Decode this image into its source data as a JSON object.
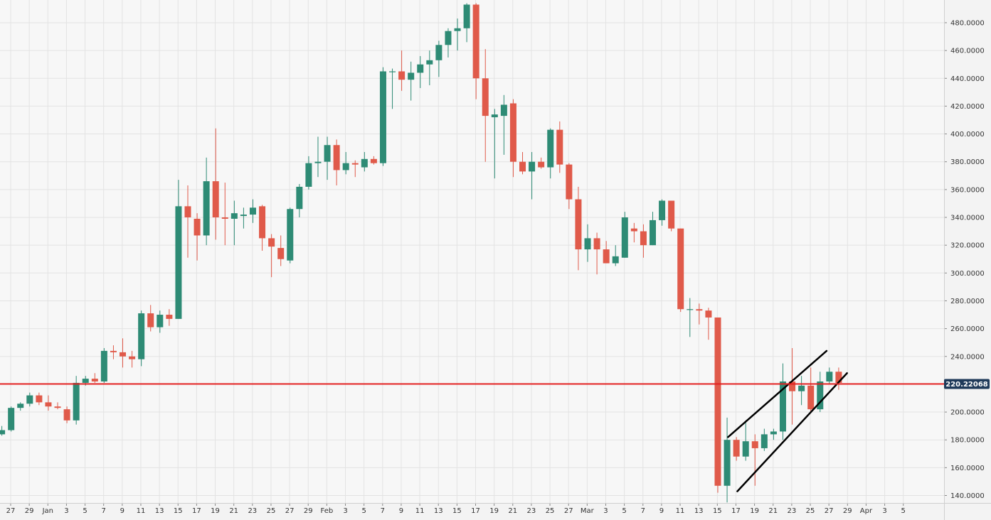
{
  "chart_data": {
    "type": "candlestick",
    "title": "",
    "xlabel": "",
    "ylabel": "",
    "ylim": [
      134,
      494
    ],
    "grid": true,
    "colors": {
      "up": "#2e8b75",
      "down": "#e05a4a",
      "price_line": "#e31f1f",
      "grid": "#e3e3e3",
      "trendline": "#000000",
      "price_tag_bg": "#1f3a5a"
    },
    "y_ticks": [
      "140.0000",
      "160.0000",
      "180.0000",
      "200.0000",
      "220.0000",
      "240.0000",
      "260.0000",
      "280.0000",
      "300.0000",
      "320.0000",
      "340.0000",
      "360.0000",
      "380.0000",
      "400.0000",
      "420.0000",
      "440.0000",
      "460.0000",
      "480.0000"
    ],
    "x_ticks": [
      "27",
      "29",
      "Jan",
      "3",
      "5",
      "7",
      "9",
      "11",
      "13",
      "15",
      "17",
      "19",
      "21",
      "23",
      "25",
      "27",
      "29",
      "Feb",
      "3",
      "5",
      "7",
      "9",
      "11",
      "13",
      "15",
      "17",
      "19",
      "21",
      "23",
      "25",
      "27",
      "Mar",
      "3",
      "5",
      "7",
      "9",
      "11",
      "13",
      "15",
      "17",
      "19",
      "21",
      "23",
      "25",
      "27",
      "29",
      "Apr",
      "3",
      "5"
    ],
    "current_price": 220.22068,
    "current_price_label": "220.22068",
    "candles": [
      {
        "o": 184,
        "h": 190,
        "l": 183,
        "c": 187
      },
      {
        "o": 187,
        "h": 204,
        "l": 186,
        "c": 203
      },
      {
        "o": 203,
        "h": 207,
        "l": 201,
        "c": 206
      },
      {
        "o": 206,
        "h": 214,
        "l": 204,
        "c": 212
      },
      {
        "o": 212,
        "h": 214,
        "l": 205,
        "c": 207
      },
      {
        "o": 207,
        "h": 212,
        "l": 201,
        "c": 204
      },
      {
        "o": 204,
        "h": 207,
        "l": 202,
        "c": 203
      },
      {
        "o": 202,
        "h": 204,
        "l": 192,
        "c": 194
      },
      {
        "o": 194,
        "h": 226,
        "l": 191,
        "c": 221
      },
      {
        "o": 221,
        "h": 226,
        "l": 219,
        "c": 224
      },
      {
        "o": 224,
        "h": 228,
        "l": 221,
        "c": 222
      },
      {
        "o": 222,
        "h": 246,
        "l": 221,
        "c": 244
      },
      {
        "o": 244,
        "h": 248,
        "l": 238,
        "c": 243
      },
      {
        "o": 243,
        "h": 253,
        "l": 232,
        "c": 240
      },
      {
        "o": 240,
        "h": 244,
        "l": 232,
        "c": 238
      },
      {
        "o": 238,
        "h": 273,
        "l": 233,
        "c": 271
      },
      {
        "o": 271,
        "h": 277,
        "l": 258,
        "c": 261
      },
      {
        "o": 261,
        "h": 273,
        "l": 257,
        "c": 270
      },
      {
        "o": 270,
        "h": 274,
        "l": 262,
        "c": 267
      },
      {
        "o": 267,
        "h": 367,
        "l": 267,
        "c": 348
      },
      {
        "o": 348,
        "h": 363,
        "l": 311,
        "c": 340
      },
      {
        "o": 339,
        "h": 343,
        "l": 309,
        "c": 327
      },
      {
        "o": 327,
        "h": 383,
        "l": 320,
        "c": 366
      },
      {
        "o": 366,
        "h": 404,
        "l": 324,
        "c": 340
      },
      {
        "o": 340,
        "h": 365,
        "l": 320,
        "c": 339
      },
      {
        "o": 339,
        "h": 352,
        "l": 320,
        "c": 343
      },
      {
        "o": 341,
        "h": 347,
        "l": 332,
        "c": 342
      },
      {
        "o": 342,
        "h": 353,
        "l": 336,
        "c": 347
      },
      {
        "o": 348,
        "h": 349,
        "l": 316,
        "c": 325
      },
      {
        "o": 325,
        "h": 328,
        "l": 297,
        "c": 319
      },
      {
        "o": 318,
        "h": 327,
        "l": 305,
        "c": 310
      },
      {
        "o": 309,
        "h": 347,
        "l": 307,
        "c": 346
      },
      {
        "o": 346,
        "h": 364,
        "l": 340,
        "c": 362
      },
      {
        "o": 362,
        "h": 384,
        "l": 360,
        "c": 379
      },
      {
        "o": 379,
        "h": 398,
        "l": 369,
        "c": 380
      },
      {
        "o": 380,
        "h": 398,
        "l": 367,
        "c": 392
      },
      {
        "o": 392,
        "h": 396,
        "l": 363,
        "c": 374
      },
      {
        "o": 374,
        "h": 387,
        "l": 371,
        "c": 379
      },
      {
        "o": 379,
        "h": 381,
        "l": 369,
        "c": 378
      },
      {
        "o": 376,
        "h": 387,
        "l": 373,
        "c": 382
      },
      {
        "o": 382,
        "h": 384,
        "l": 378,
        "c": 379
      },
      {
        "o": 379,
        "h": 448,
        "l": 377,
        "c": 445
      },
      {
        "o": 445,
        "h": 447,
        "l": 418,
        "c": 445
      },
      {
        "o": 445,
        "h": 460,
        "l": 431,
        "c": 439
      },
      {
        "o": 439,
        "h": 452,
        "l": 424,
        "c": 444
      },
      {
        "o": 444,
        "h": 456,
        "l": 433,
        "c": 450
      },
      {
        "o": 450,
        "h": 460,
        "l": 435,
        "c": 453
      },
      {
        "o": 453,
        "h": 467,
        "l": 441,
        "c": 464
      },
      {
        "o": 464,
        "h": 476,
        "l": 455,
        "c": 474
      },
      {
        "o": 474,
        "h": 483,
        "l": 460,
        "c": 476
      },
      {
        "o": 476,
        "h": 494,
        "l": 466,
        "c": 493
      },
      {
        "o": 493,
        "h": 494,
        "l": 425,
        "c": 440
      },
      {
        "o": 440,
        "h": 461,
        "l": 380,
        "c": 413
      },
      {
        "o": 412,
        "h": 418,
        "l": 368,
        "c": 414
      },
      {
        "o": 413,
        "h": 428,
        "l": 385,
        "c": 421
      },
      {
        "o": 422,
        "h": 425,
        "l": 369,
        "c": 380
      },
      {
        "o": 380,
        "h": 387,
        "l": 371,
        "c": 373
      },
      {
        "o": 373,
        "h": 387,
        "l": 353,
        "c": 380
      },
      {
        "o": 380,
        "h": 383,
        "l": 375,
        "c": 376
      },
      {
        "o": 376,
        "h": 404,
        "l": 368,
        "c": 403
      },
      {
        "o": 403,
        "h": 409,
        "l": 372,
        "c": 378
      },
      {
        "o": 378,
        "h": 379,
        "l": 346,
        "c": 353
      },
      {
        "o": 353,
        "h": 362,
        "l": 302,
        "c": 317
      },
      {
        "o": 317,
        "h": 335,
        "l": 308,
        "c": 325
      },
      {
        "o": 325,
        "h": 329,
        "l": 299,
        "c": 317
      },
      {
        "o": 317,
        "h": 323,
        "l": 307,
        "c": 307
      },
      {
        "o": 307,
        "h": 320,
        "l": 305,
        "c": 312
      },
      {
        "o": 311,
        "h": 344,
        "l": 311,
        "c": 340
      },
      {
        "o": 332,
        "h": 336,
        "l": 322,
        "c": 330
      },
      {
        "o": 330,
        "h": 335,
        "l": 311,
        "c": 320
      },
      {
        "o": 320,
        "h": 344,
        "l": 320,
        "c": 338
      },
      {
        "o": 338,
        "h": 353,
        "l": 334,
        "c": 352
      },
      {
        "o": 352,
        "h": 352,
        "l": 330,
        "c": 332
      },
      {
        "o": 332,
        "h": 332,
        "l": 272,
        "c": 274
      },
      {
        "o": 274,
        "h": 282,
        "l": 254,
        "c": 274
      },
      {
        "o": 274,
        "h": 278,
        "l": 263,
        "c": 273
      },
      {
        "o": 273,
        "h": 275,
        "l": 252,
        "c": 268
      },
      {
        "o": 268,
        "h": 268,
        "l": 142,
        "c": 147
      },
      {
        "o": 147,
        "h": 196,
        "l": 135,
        "c": 180
      },
      {
        "o": 180,
        "h": 182,
        "l": 165,
        "c": 168
      },
      {
        "o": 168,
        "h": 194,
        "l": 165,
        "c": 179
      },
      {
        "o": 179,
        "h": 184,
        "l": 147,
        "c": 174
      },
      {
        "o": 174,
        "h": 188,
        "l": 172,
        "c": 184
      },
      {
        "o": 184,
        "h": 188,
        "l": 180,
        "c": 186
      },
      {
        "o": 186,
        "h": 235,
        "l": 180,
        "c": 222
      },
      {
        "o": 222,
        "h": 246,
        "l": 191,
        "c": 215
      },
      {
        "o": 215,
        "h": 226,
        "l": 205,
        "c": 219
      },
      {
        "o": 219,
        "h": 232,
        "l": 200,
        "c": 202
      },
      {
        "o": 202,
        "h": 229,
        "l": 200,
        "c": 222
      },
      {
        "o": 222,
        "h": 232,
        "l": 220,
        "c": 229
      },
      {
        "o": 229,
        "h": 232,
        "l": 216,
        "c": 221
      }
    ],
    "trendlines": [
      {
        "from": {
          "idx": 78.1,
          "y": 182
        },
        "to": {
          "idx": 88.7,
          "y": 244
        }
      },
      {
        "from": {
          "idx": 79.1,
          "y": 143
        },
        "to": {
          "idx": 90.9,
          "y": 228
        }
      }
    ]
  }
}
